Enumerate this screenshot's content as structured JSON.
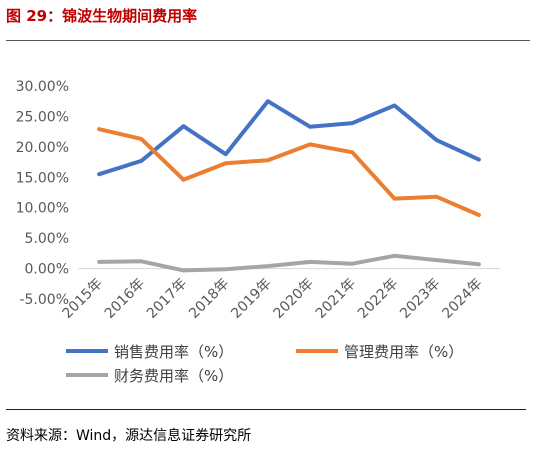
{
  "header": {
    "title": "图 29：锦波生物期间费用率"
  },
  "footer": {
    "source": "资料来源：Wind，源达信息证券研究所"
  },
  "chart_data": {
    "type": "line",
    "categories": [
      "2015年",
      "2016年",
      "2017年",
      "2018年",
      "2019年",
      "2020年",
      "2021年",
      "2022年",
      "2023年",
      "2024年"
    ],
    "ylim": [
      -5,
      30
    ],
    "yticks": [
      "30.00%",
      "25.00%",
      "20.00%",
      "15.00%",
      "10.00%",
      "5.00%",
      "0.00%",
      "-5.00%"
    ],
    "grid": false,
    "legend_position": "bottom",
    "series": [
      {
        "name": "销售费用率（%）",
        "color": "#4472c4",
        "values": [
          15.5,
          17.7,
          23.4,
          18.8,
          27.5,
          23.3,
          23.9,
          26.8,
          21.1,
          17.9
        ]
      },
      {
        "name": "管理费用率（%）",
        "color": "#ed7d31",
        "values": [
          22.9,
          21.3,
          14.6,
          17.3,
          17.8,
          20.4,
          19.1,
          11.5,
          11.8,
          8.8
        ]
      },
      {
        "name": "财务费用率（%）",
        "color": "#a5a5a5",
        "values": [
          1.1,
          1.2,
          -0.3,
          -0.1,
          0.4,
          1.1,
          0.8,
          2.1,
          1.4,
          0.7
        ]
      }
    ]
  }
}
